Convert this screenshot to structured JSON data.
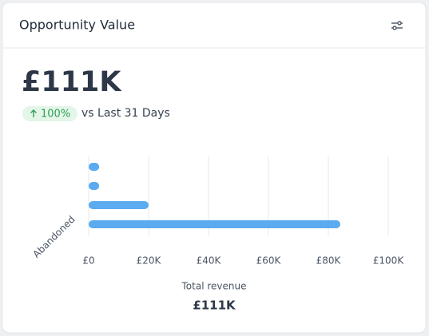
{
  "header": {
    "title": "Opportunity Value"
  },
  "kpi": {
    "value": "£111K",
    "change": "100%",
    "comparison": "vs Last 31 Days"
  },
  "chart_data": {
    "type": "hbar",
    "categories": [
      "Abandoned"
    ],
    "series": [
      {
        "color": "#5aabf0",
        "values": [
          3500
        ]
      },
      {
        "color": "#5aabf0",
        "values": [
          3500
        ]
      },
      {
        "color": "#5aabf0",
        "values": [
          20000
        ]
      },
      {
        "color": "#5aabf0",
        "values": [
          84000
        ]
      }
    ],
    "xlim": [
      0,
      100000
    ],
    "xticks": [
      {
        "value": 0,
        "label": "£0"
      },
      {
        "value": 20000,
        "label": "£20K"
      },
      {
        "value": 40000,
        "label": "£40K"
      },
      {
        "value": 60000,
        "label": "£60K"
      },
      {
        "value": 80000,
        "label": "£80K"
      },
      {
        "value": 100000,
        "label": "£100K"
      }
    ],
    "grid": true,
    "xlabel": "Total revenue",
    "total": "£111K"
  }
}
